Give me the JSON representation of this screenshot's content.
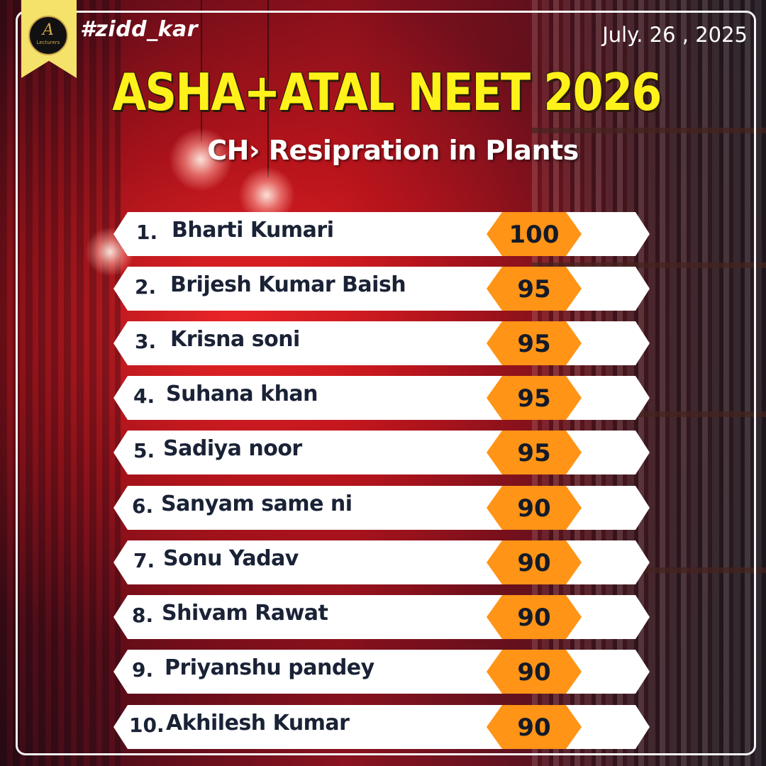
{
  "header": {
    "hashtag": "#zidd_kar",
    "date": "July. 26 , 2025",
    "logo_mark": "A",
    "logo_text": "Lecturers"
  },
  "title": "ASHA+ATAL NEET 2026",
  "subtitle": "CH› Resipration in Plants",
  "colors": {
    "title": "#fff21a",
    "score_badge": "#ff9416",
    "row_background": "#ffffff",
    "name_text": "#1a2236",
    "ribbon": "#f5e26a"
  },
  "leaderboard": [
    {
      "rank": "1.",
      "name": "Bharti Kumari",
      "score": "100"
    },
    {
      "rank": "2.",
      "name": "Brijesh Kumar Baish",
      "score": "95"
    },
    {
      "rank": "3.",
      "name": "Krisna soni",
      "score": "95"
    },
    {
      "rank": "4.",
      "name": "Suhana khan",
      "score": "95"
    },
    {
      "rank": "5.",
      "name": "Sadiya noor",
      "score": "95"
    },
    {
      "rank": "6.",
      "name": "Sanyam same ni",
      "score": "90"
    },
    {
      "rank": "7.",
      "name": "Sonu Yadav",
      "score": "90"
    },
    {
      "rank": "8.",
      "name": "Shivam Rawat",
      "score": "90"
    },
    {
      "rank": "9.",
      "name": "Priyanshu pandey",
      "score": "90"
    },
    {
      "rank": "10.",
      "name": "Akhilesh Kumar",
      "score": "90"
    }
  ]
}
